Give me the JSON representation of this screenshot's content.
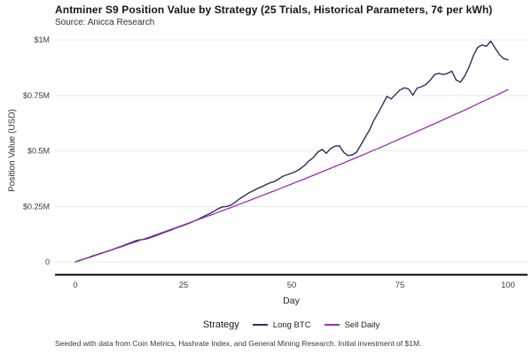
{
  "header": {
    "title": "Antminer S9 Position Value by Strategy (25 Trials, Historical Parameters, 7¢ per kWh)",
    "subtitle": "Source: Anicca Research"
  },
  "footer": {
    "note": "Seeded with data from Coin Metrics, Hashrate Index, and General Mining Research. Initial investment of $1M."
  },
  "colors": {
    "long_btc": "#2c2e62",
    "sell_daily": "#9c30b4",
    "grid": "#e9e9e9",
    "axis": "#000000",
    "tick_text": "#3d3d3d",
    "background": "#ffffff"
  },
  "chart_data": {
    "type": "line",
    "title": "Antminer S9 Position Value by Strategy (25 Trials, Historical Parameters, 7¢ per kWh)",
    "subtitle": "Source: Anicca Research",
    "xlabel": "Day",
    "ylabel": "Position Value (USD)",
    "legend_title": "Strategy",
    "legend_position": "bottom-center",
    "grid": "horizontal-only",
    "x_range": [
      0,
      100
    ],
    "x_interval": 1,
    "xticks": [
      0,
      25,
      50,
      75,
      100
    ],
    "xtick_labels": [
      "0",
      "25",
      "50",
      "75",
      "100"
    ],
    "ylim": [
      0,
      1
    ],
    "y_units": "millions of USD",
    "yticks": [
      0,
      0.25,
      0.5,
      0.75,
      1
    ],
    "ytick_labels": [
      "0",
      "$0.25M",
      "$0.5M",
      "$0.75M",
      "$1M"
    ],
    "series": [
      {
        "name": "Long BTC",
        "color": "#2c2e62",
        "width": 1.4,
        "values": [
          0,
          0.007,
          0.014,
          0.02,
          0.027,
          0.033,
          0.04,
          0.046,
          0.052,
          0.059,
          0.066,
          0.073,
          0.081,
          0.088,
          0.096,
          0.1,
          0.102,
          0.107,
          0.114,
          0.121,
          0.129,
          0.136,
          0.143,
          0.151,
          0.158,
          0.165,
          0.172,
          0.18,
          0.189,
          0.198,
          0.208,
          0.217,
          0.228,
          0.24,
          0.248,
          0.25,
          0.256,
          0.27,
          0.285,
          0.297,
          0.31,
          0.32,
          0.33,
          0.338,
          0.348,
          0.356,
          0.362,
          0.374,
          0.386,
          0.393,
          0.4,
          0.408,
          0.42,
          0.435,
          0.455,
          0.47,
          0.494,
          0.507,
          0.489,
          0.511,
          0.521,
          0.523,
          0.494,
          0.479,
          0.482,
          0.494,
          0.528,
          0.562,
          0.594,
          0.638,
          0.672,
          0.708,
          0.746,
          0.734,
          0.754,
          0.774,
          0.784,
          0.779,
          0.751,
          0.783,
          0.789,
          0.799,
          0.818,
          0.843,
          0.849,
          0.844,
          0.849,
          0.859,
          0.819,
          0.809,
          0.838,
          0.878,
          0.93,
          0.966,
          0.977,
          0.971,
          0.994,
          0.963,
          0.934,
          0.915,
          0.91
        ]
      },
      {
        "name": "Sell Daily",
        "color": "#9c30b4",
        "width": 1.3,
        "values": [
          0,
          0.006,
          0.013,
          0.019,
          0.025,
          0.032,
          0.038,
          0.045,
          0.051,
          0.058,
          0.064,
          0.071,
          0.078,
          0.084,
          0.091,
          0.098,
          0.104,
          0.111,
          0.118,
          0.125,
          0.132,
          0.139,
          0.146,
          0.153,
          0.16,
          0.167,
          0.174,
          0.181,
          0.188,
          0.195,
          0.202,
          0.209,
          0.216,
          0.224,
          0.231,
          0.238,
          0.245,
          0.253,
          0.26,
          0.268,
          0.275,
          0.283,
          0.29,
          0.298,
          0.305,
          0.313,
          0.32,
          0.328,
          0.336,
          0.343,
          0.351,
          0.359,
          0.366,
          0.374,
          0.382,
          0.39,
          0.398,
          0.406,
          0.414,
          0.422,
          0.43,
          0.438,
          0.446,
          0.454,
          0.462,
          0.47,
          0.478,
          0.487,
          0.495,
          0.503,
          0.511,
          0.52,
          0.528,
          0.537,
          0.545,
          0.554,
          0.562,
          0.571,
          0.579,
          0.588,
          0.596,
          0.605,
          0.614,
          0.622,
          0.631,
          0.64,
          0.649,
          0.658,
          0.667,
          0.675,
          0.684,
          0.693,
          0.702,
          0.712,
          0.721,
          0.73,
          0.739,
          0.748,
          0.757,
          0.767,
          0.776
        ]
      }
    ]
  }
}
